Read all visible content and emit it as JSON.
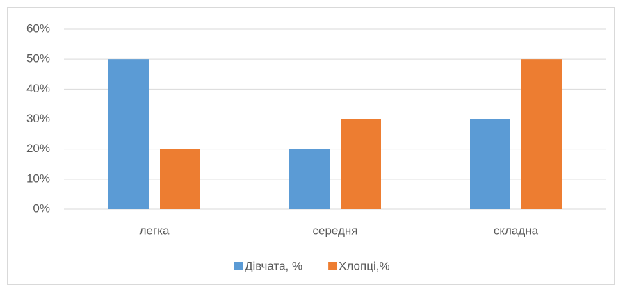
{
  "chart_data": {
    "type": "bar",
    "categories": [
      "легка",
      "середня",
      "складна"
    ],
    "series": [
      {
        "name": "Дівчата, %",
        "color": "#5b9bd5",
        "values": [
          50,
          20,
          30
        ]
      },
      {
        "name": "Хлопці,%",
        "color": "#ed7d31",
        "values": [
          20,
          30,
          50
        ]
      }
    ],
    "ylim": [
      0,
      60
    ],
    "yticks": [
      {
        "value": 0,
        "label": "0%"
      },
      {
        "value": 10,
        "label": "10%"
      },
      {
        "value": 20,
        "label": "20%"
      },
      {
        "value": 30,
        "label": "30%"
      },
      {
        "value": 40,
        "label": "40%"
      },
      {
        "value": 50,
        "label": "50%"
      },
      {
        "value": 60,
        "label": "60%"
      }
    ],
    "grid": true,
    "legend": "bottom"
  }
}
